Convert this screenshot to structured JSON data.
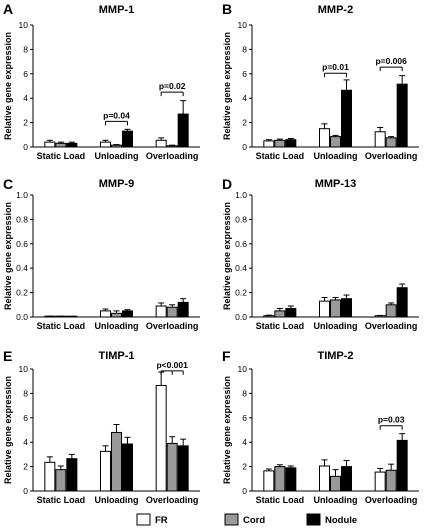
{
  "legend": [
    {
      "name": "FR",
      "color": "#ffffff"
    },
    {
      "name": "Cord",
      "color": "#999999"
    },
    {
      "name": "Nodule",
      "color": "#000000"
    }
  ],
  "chart_data": [
    {
      "type": "bar",
      "panel": "A",
      "title": "MMP-1",
      "ylabel": "Relative gene expression",
      "ylim": [
        0,
        10
      ],
      "yticks": [
        0,
        2,
        4,
        6,
        8,
        10
      ],
      "ytick_labels": [
        "0",
        "2",
        "4",
        "6",
        "8",
        "10"
      ],
      "categories": [
        "Static Load",
        "Unloading",
        "Overloading"
      ],
      "series": [
        {
          "name": "FR",
          "values": [
            0.4,
            0.4,
            0.55
          ],
          "errors": [
            0.15,
            0.15,
            0.2
          ]
        },
        {
          "name": "Cord",
          "values": [
            0.3,
            0.15,
            0.1
          ],
          "errors": [
            0.1,
            0.05,
            0.05
          ]
        },
        {
          "name": "Nodule",
          "values": [
            0.3,
            1.3,
            2.7
          ],
          "errors": [
            0.1,
            0.15,
            1.1
          ]
        }
      ],
      "annotations": [
        {
          "text": "p=0.04",
          "category": 1,
          "from": 0,
          "to": 2,
          "y": 2.1
        },
        {
          "text": "p=0.02",
          "category": 2,
          "from": 0,
          "to": 2,
          "y": 4.5
        }
      ]
    },
    {
      "type": "bar",
      "panel": "B",
      "title": "MMP-2",
      "ylabel": "Relative gene expression",
      "ylim": [
        0,
        10
      ],
      "yticks": [
        0,
        2,
        4,
        6,
        8,
        10
      ],
      "ytick_labels": [
        "0",
        "2",
        "4",
        "6",
        "8",
        "10"
      ],
      "categories": [
        "Static Load",
        "Unloading",
        "Overloading"
      ],
      "series": [
        {
          "name": "FR",
          "values": [
            0.5,
            1.5,
            1.25
          ],
          "errors": [
            0.1,
            0.4,
            0.35
          ]
        },
        {
          "name": "Cord",
          "values": [
            0.55,
            0.85,
            0.75
          ],
          "errors": [
            0.1,
            0.1,
            0.1
          ]
        },
        {
          "name": "Nodule",
          "values": [
            0.6,
            4.65,
            5.15
          ],
          "errors": [
            0.1,
            0.85,
            0.7
          ]
        }
      ],
      "annotations": [
        {
          "text": "p=0.01",
          "category": 1,
          "from": 0,
          "to": 2,
          "y": 6.05
        },
        {
          "text": "p=0.006",
          "category": 2,
          "from": 0,
          "to": 2,
          "y": 6.55
        }
      ]
    },
    {
      "type": "bar",
      "panel": "C",
      "title": "MMP-9",
      "ylabel": "Relative gene expression",
      "ylim": [
        0,
        1.0
      ],
      "yticks": [
        0,
        0.2,
        0.4,
        0.6,
        0.8,
        1.0
      ],
      "ytick_labels": [
        "0.0",
        "0.2",
        "0.4",
        "0.6",
        "0.8",
        "1.0"
      ],
      "categories": [
        "Static Load",
        "Unloading",
        "Overloading"
      ],
      "series": [
        {
          "name": "FR",
          "values": [
            0.005,
            0.05,
            0.09
          ],
          "errors": [
            0.002,
            0.015,
            0.025
          ]
        },
        {
          "name": "Cord",
          "values": [
            0.005,
            0.03,
            0.08
          ],
          "errors": [
            0.002,
            0.02,
            0.02
          ]
        },
        {
          "name": "Nodule",
          "values": [
            0.003,
            0.05,
            0.12
          ],
          "errors": [
            0.002,
            0.01,
            0.03
          ]
        }
      ],
      "annotations": []
    },
    {
      "type": "bar",
      "panel": "D",
      "title": "MMP-13",
      "ylabel": "Relative gene expression",
      "ylim": [
        0,
        1.0
      ],
      "yticks": [
        0,
        0.2,
        0.4,
        0.6,
        0.8,
        1.0
      ],
      "ytick_labels": [
        "0.0",
        "0.2",
        "0.4",
        "0.6",
        "0.8",
        "1.0"
      ],
      "categories": [
        "Static Load",
        "Unloading",
        "Overloading"
      ],
      "series": [
        {
          "name": "FR",
          "values": [
            0.01,
            0.13,
            0.01
          ],
          "errors": [
            0.005,
            0.03,
            0.003
          ]
        },
        {
          "name": "Cord",
          "values": [
            0.05,
            0.14,
            0.1
          ],
          "errors": [
            0.02,
            0.02,
            0.015
          ]
        },
        {
          "name": "Nodule",
          "values": [
            0.07,
            0.15,
            0.24
          ],
          "errors": [
            0.02,
            0.03,
            0.03
          ]
        }
      ],
      "annotations": []
    },
    {
      "type": "bar",
      "panel": "E",
      "title": "TIMP-1",
      "ylabel": "Relative gene expression",
      "ylim": [
        0,
        10
      ],
      "yticks": [
        0,
        2,
        4,
        6,
        8,
        10
      ],
      "ytick_labels": [
        "0",
        "2",
        "4",
        "6",
        "8",
        "10"
      ],
      "categories": [
        "Static Load",
        "Unloading",
        "Overloading"
      ],
      "series": [
        {
          "name": "FR",
          "values": [
            2.35,
            3.25,
            8.65
          ],
          "errors": [
            0.45,
            0.45,
            1.1
          ]
        },
        {
          "name": "Cord",
          "values": [
            1.75,
            4.8,
            3.9
          ],
          "errors": [
            0.3,
            0.65,
            0.55
          ]
        },
        {
          "name": "Nodule",
          "values": [
            2.65,
            3.85,
            3.7
          ],
          "errors": [
            0.35,
            0.55,
            0.55
          ]
        }
      ],
      "annotations": [
        {
          "text": "p<0.001",
          "category": 2,
          "from": 0,
          "to": [
            1,
            2
          ],
          "y": 9.85
        }
      ]
    },
    {
      "type": "bar",
      "panel": "F",
      "title": "TIMP-2",
      "ylabel": "Relative gene expression",
      "ylim": [
        0,
        10
      ],
      "yticks": [
        0,
        2,
        4,
        6,
        8,
        10
      ],
      "ytick_labels": [
        "0",
        "2",
        "4",
        "6",
        "8",
        "10"
      ],
      "categories": [
        "Static Load",
        "Unloading",
        "Overloading"
      ],
      "series": [
        {
          "name": "FR",
          "values": [
            1.65,
            2.05,
            1.55
          ],
          "errors": [
            0.15,
            0.5,
            0.3
          ]
        },
        {
          "name": "Cord",
          "values": [
            2.0,
            1.2,
            1.7
          ],
          "errors": [
            0.15,
            0.55,
            0.5
          ]
        },
        {
          "name": "Nodule",
          "values": [
            1.9,
            2.0,
            4.15
          ],
          "errors": [
            0.15,
            0.5,
            0.55
          ]
        }
      ],
      "annotations": [
        {
          "text": "p=0.03",
          "category": 2,
          "from": 0,
          "to": 2,
          "y": 5.35
        }
      ]
    }
  ]
}
